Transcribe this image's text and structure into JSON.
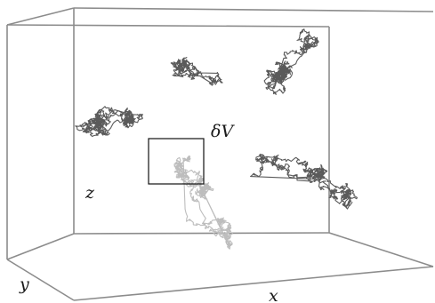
{
  "labels": {
    "z": "z",
    "y": "y",
    "x": "x",
    "volume": "δV"
  },
  "colors": {
    "box_edge": "#8c8c8c",
    "walk_dark": "#5a5a5a",
    "walk_light": "#bdbdbd",
    "volume_box": "#111111"
  },
  "walks": [
    {
      "name": "left-cluster-walk",
      "tone": "dark"
    },
    {
      "name": "top-center-walk",
      "tone": "dark"
    },
    {
      "name": "upper-right-walk",
      "tone": "dark"
    },
    {
      "name": "right-cluster-walk",
      "tone": "dark"
    },
    {
      "name": "volume-crossing-walk",
      "tone": "light"
    }
  ]
}
